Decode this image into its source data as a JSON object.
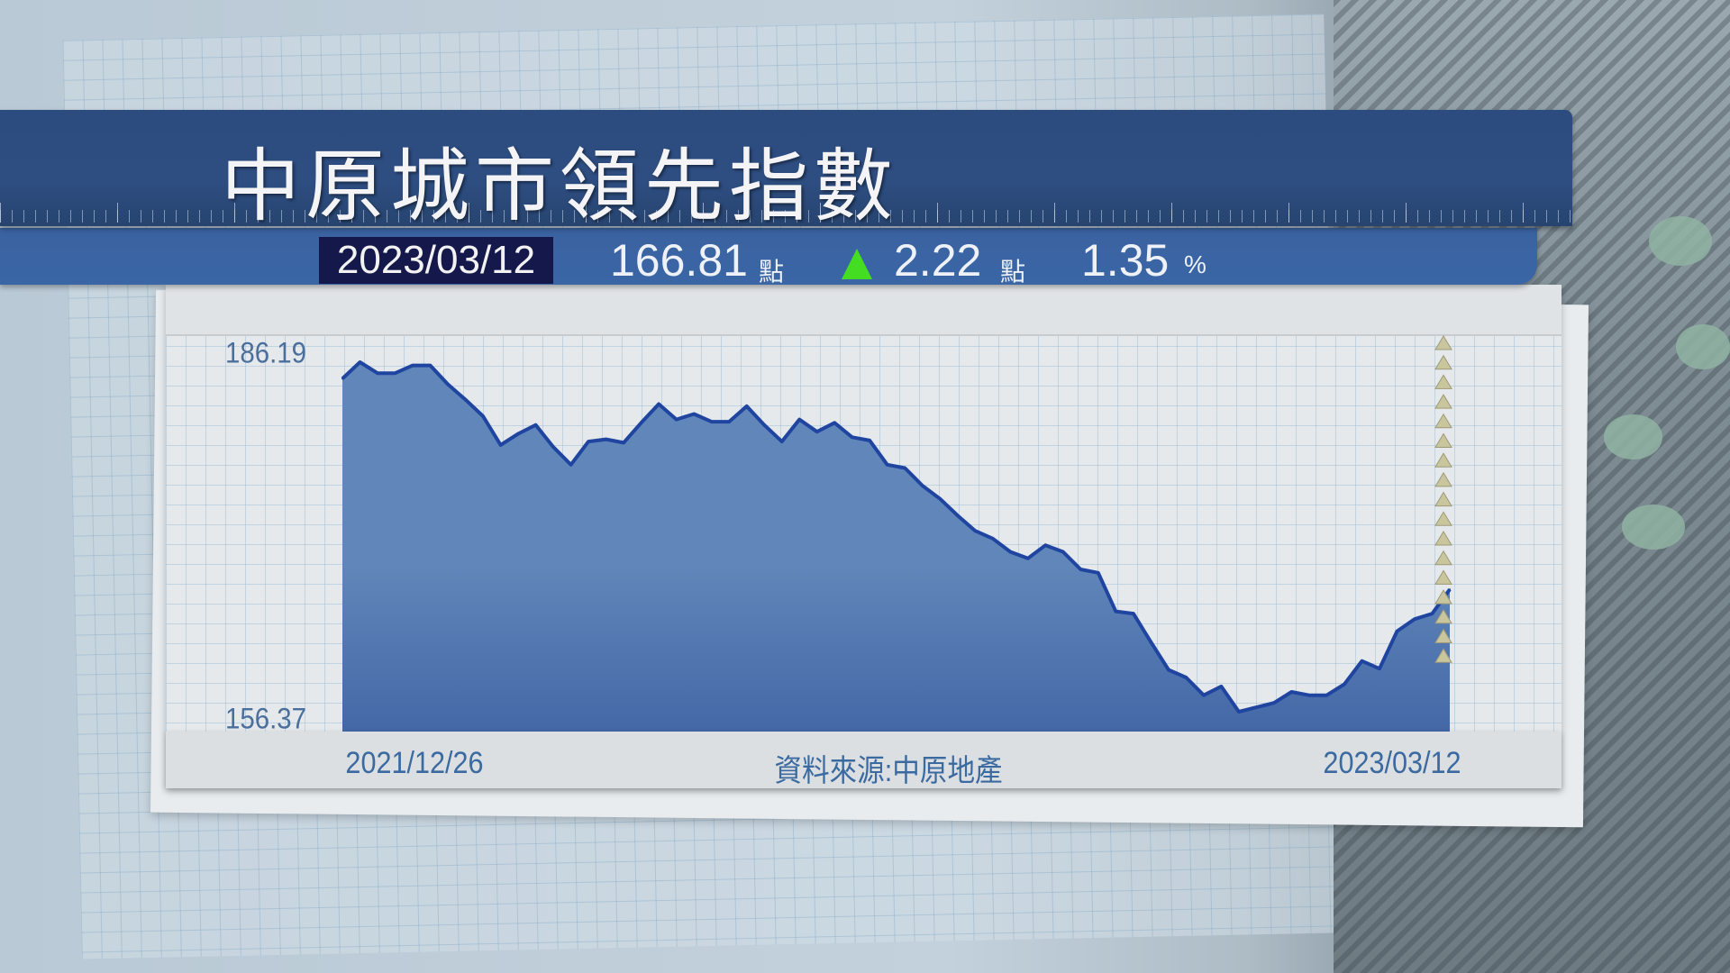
{
  "header": {
    "title": "中原城市領先指數",
    "date": "2023/03/12",
    "index_value": "166.81",
    "index_unit": "點",
    "change_icon": "up-triangle-icon",
    "change_value": "2.22",
    "change_unit": "點",
    "change_percent": "1.35",
    "percent_unit": "%"
  },
  "colors": {
    "title_bar": "#2c4c80",
    "sub_bar": "#3a64a2",
    "date_box": "#14184a",
    "up_indicator": "#44dd22",
    "line": "#1f45a0",
    "area_top": "#6086ba",
    "area_bottom": "#4468a6",
    "marker": "#c9c59c"
  },
  "footer": {
    "source": "資料來源:中原地產"
  },
  "chart_data": {
    "type": "area",
    "title": "中原城市領先指數",
    "x_start_label": "2021/12/26",
    "x_end_label": "2023/03/12",
    "y_tick_labels": [
      "186.19",
      "156.37"
    ],
    "ylim": [
      156.37,
      186.19
    ],
    "grid": true,
    "values": [
      184.78,
      186.19,
      185.25,
      185.25,
      185.91,
      185.91,
      184.31,
      182.99,
      181.58,
      179.13,
      180.08,
      180.83,
      178.95,
      177.44,
      179.42,
      179.61,
      179.32,
      181.02,
      182.62,
      181.3,
      181.77,
      181.11,
      181.11,
      182.43,
      180.83,
      179.42,
      181.3,
      180.26,
      181.02,
      179.79,
      179.51,
      177.44,
      177.16,
      175.65,
      174.53,
      173.11,
      171.8,
      171.14,
      170.01,
      169.45,
      170.57,
      170.01,
      168.51,
      168.22,
      164.93,
      164.74,
      162.3,
      159.94,
      159.29,
      157.78,
      158.53,
      156.37,
      156.75,
      157.12,
      158.06,
      157.78,
      157.78,
      158.72,
      160.7,
      160.04,
      163.24,
      164.27,
      164.74,
      166.81
    ],
    "latest_marker": "dotted-triangle-column"
  }
}
